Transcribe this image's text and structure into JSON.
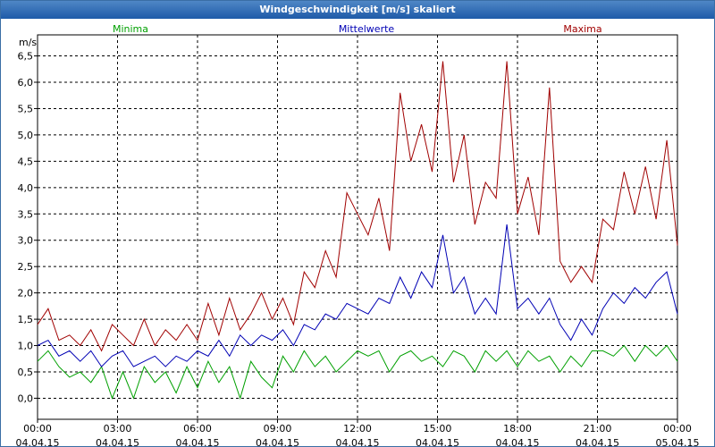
{
  "window": {
    "title": "Windgeschwindigkeit [m/s] skaliert"
  },
  "chart_data": {
    "type": "line",
    "title": "Windgeschwindigkeit [m/s] skaliert",
    "ylabel": "m/s",
    "ylim": [
      -0.4,
      6.9
    ],
    "xlim": [
      "04.04.15 00:00",
      "05.04.15 00:00"
    ],
    "grid": true,
    "y_ticks": [
      "0,0",
      "0,5",
      "1,0",
      "1,5",
      "2,0",
      "2,5",
      "3,0",
      "3,5",
      "4,0",
      "4,5",
      "5,0",
      "5,5",
      "6,0",
      "6,5"
    ],
    "x_ticks": [
      {
        "time": "00:00",
        "date": "04.04.15"
      },
      {
        "time": "03:00",
        "date": "04.04.15"
      },
      {
        "time": "06:00",
        "date": "04.04.15"
      },
      {
        "time": "09:00",
        "date": "04.04.15"
      },
      {
        "time": "12:00",
        "date": "04.04.15"
      },
      {
        "time": "15:00",
        "date": "04.04.15"
      },
      {
        "time": "18:00",
        "date": "04.04.15"
      },
      {
        "time": "21:00",
        "date": "04.04.15"
      },
      {
        "time": "00:00",
        "date": "05.04.15"
      }
    ],
    "series": [
      {
        "name": "Minima",
        "color": "#00a000",
        "points": [
          [
            "04.04.15 00:00",
            0.7
          ],
          [
            "04.04.15 00:24",
            0.9
          ],
          [
            "04.04.15 00:48",
            0.6
          ],
          [
            "04.04.15 01:12",
            0.4
          ],
          [
            "04.04.15 01:36",
            0.5
          ],
          [
            "04.04.15 02:00",
            0.3
          ],
          [
            "04.04.15 02:24",
            0.6
          ],
          [
            "04.04.15 02:48",
            0.0
          ],
          [
            "04.04.15 03:12",
            0.5
          ],
          [
            "04.04.15 03:36",
            0.0
          ],
          [
            "04.04.15 04:00",
            0.6
          ],
          [
            "04.04.15 04:24",
            0.3
          ],
          [
            "04.04.15 04:48",
            0.5
          ],
          [
            "04.04.15 05:12",
            0.1
          ],
          [
            "04.04.15 05:36",
            0.6
          ],
          [
            "04.04.15 06:00",
            0.2
          ],
          [
            "04.04.15 06:24",
            0.7
          ],
          [
            "04.04.15 06:48",
            0.3
          ],
          [
            "04.04.15 07:12",
            0.6
          ],
          [
            "04.04.15 07:36",
            0.0
          ],
          [
            "04.04.15 08:00",
            0.7
          ],
          [
            "04.04.15 08:24",
            0.4
          ],
          [
            "04.04.15 08:48",
            0.2
          ],
          [
            "04.04.15 09:12",
            0.8
          ],
          [
            "04.04.15 09:36",
            0.5
          ],
          [
            "04.04.15 10:00",
            0.9
          ],
          [
            "04.04.15 10:24",
            0.6
          ],
          [
            "04.04.15 10:48",
            0.8
          ],
          [
            "04.04.15 11:12",
            0.5
          ],
          [
            "04.04.15 11:36",
            0.7
          ],
          [
            "04.04.15 12:00",
            0.9
          ],
          [
            "04.04.15 12:24",
            0.8
          ],
          [
            "04.04.15 12:48",
            0.9
          ],
          [
            "04.04.15 13:12",
            0.5
          ],
          [
            "04.04.15 13:36",
            0.8
          ],
          [
            "04.04.15 14:00",
            0.9
          ],
          [
            "04.04.15 14:24",
            0.7
          ],
          [
            "04.04.15 14:48",
            0.8
          ],
          [
            "04.04.15 15:12",
            0.6
          ],
          [
            "04.04.15 15:36",
            0.9
          ],
          [
            "04.04.15 16:00",
            0.8
          ],
          [
            "04.04.15 16:24",
            0.5
          ],
          [
            "04.04.15 16:48",
            0.9
          ],
          [
            "04.04.15 17:12",
            0.7
          ],
          [
            "04.04.15 17:36",
            0.9
          ],
          [
            "04.04.15 18:00",
            0.6
          ],
          [
            "04.04.15 18:24",
            0.9
          ],
          [
            "04.04.15 18:48",
            0.7
          ],
          [
            "04.04.15 19:12",
            0.8
          ],
          [
            "04.04.15 19:36",
            0.5
          ],
          [
            "04.04.15 20:00",
            0.8
          ],
          [
            "04.04.15 20:24",
            0.6
          ],
          [
            "04.04.15 20:48",
            0.9
          ],
          [
            "04.04.15 21:12",
            0.9
          ],
          [
            "04.04.15 21:36",
            0.8
          ],
          [
            "04.04.15 22:00",
            1.0
          ],
          [
            "04.04.15 22:24",
            0.7
          ],
          [
            "04.04.15 22:48",
            1.0
          ],
          [
            "04.04.15 23:12",
            0.8
          ],
          [
            "04.04.15 23:36",
            1.0
          ],
          [
            "05.04.15 00:00",
            0.7
          ]
        ]
      },
      {
        "name": "Mittelwerte",
        "color": "#0000b4",
        "points": [
          [
            "04.04.15 00:00",
            1.0
          ],
          [
            "04.04.15 00:24",
            1.1
          ],
          [
            "04.04.15 00:48",
            0.8
          ],
          [
            "04.04.15 01:12",
            0.9
          ],
          [
            "04.04.15 01:36",
            0.7
          ],
          [
            "04.04.15 02:00",
            0.9
          ],
          [
            "04.04.15 02:24",
            0.6
          ],
          [
            "04.04.15 02:48",
            0.8
          ],
          [
            "04.04.15 03:12",
            0.9
          ],
          [
            "04.04.15 03:36",
            0.6
          ],
          [
            "04.04.15 04:00",
            0.7
          ],
          [
            "04.04.15 04:24",
            0.8
          ],
          [
            "04.04.15 04:48",
            0.6
          ],
          [
            "04.04.15 05:12",
            0.8
          ],
          [
            "04.04.15 05:36",
            0.7
          ],
          [
            "04.04.15 06:00",
            0.9
          ],
          [
            "04.04.15 06:24",
            0.8
          ],
          [
            "04.04.15 06:48",
            1.1
          ],
          [
            "04.04.15 07:12",
            0.8
          ],
          [
            "04.04.15 07:36",
            1.2
          ],
          [
            "04.04.15 08:00",
            1.0
          ],
          [
            "04.04.15 08:24",
            1.2
          ],
          [
            "04.04.15 08:48",
            1.1
          ],
          [
            "04.04.15 09:12",
            1.3
          ],
          [
            "04.04.15 09:36",
            1.0
          ],
          [
            "04.04.15 10:00",
            1.4
          ],
          [
            "04.04.15 10:24",
            1.3
          ],
          [
            "04.04.15 10:48",
            1.6
          ],
          [
            "04.04.15 11:12",
            1.5
          ],
          [
            "04.04.15 11:36",
            1.8
          ],
          [
            "04.04.15 12:00",
            1.7
          ],
          [
            "04.04.15 12:24",
            1.6
          ],
          [
            "04.04.15 12:48",
            1.9
          ],
          [
            "04.04.15 13:12",
            1.8
          ],
          [
            "04.04.15 13:36",
            2.3
          ],
          [
            "04.04.15 14:00",
            1.9
          ],
          [
            "04.04.15 14:24",
            2.4
          ],
          [
            "04.04.15 14:48",
            2.1
          ],
          [
            "04.04.15 15:12",
            3.1
          ],
          [
            "04.04.15 15:36",
            2.0
          ],
          [
            "04.04.15 16:00",
            2.3
          ],
          [
            "04.04.15 16:24",
            1.6
          ],
          [
            "04.04.15 16:48",
            1.9
          ],
          [
            "04.04.15 17:12",
            1.6
          ],
          [
            "04.04.15 17:36",
            3.3
          ],
          [
            "04.04.15 18:00",
            1.7
          ],
          [
            "04.04.15 18:24",
            1.9
          ],
          [
            "04.04.15 18:48",
            1.6
          ],
          [
            "04.04.15 19:12",
            1.9
          ],
          [
            "04.04.15 19:36",
            1.4
          ],
          [
            "04.04.15 20:00",
            1.1
          ],
          [
            "04.04.15 20:24",
            1.5
          ],
          [
            "04.04.15 20:48",
            1.2
          ],
          [
            "04.04.15 21:12",
            1.7
          ],
          [
            "04.04.15 21:36",
            2.0
          ],
          [
            "04.04.15 22:00",
            1.8
          ],
          [
            "04.04.15 22:24",
            2.1
          ],
          [
            "04.04.15 22:48",
            1.9
          ],
          [
            "04.04.15 23:12",
            2.2
          ],
          [
            "04.04.15 23:36",
            2.4
          ],
          [
            "05.04.15 00:00",
            1.6
          ]
        ]
      },
      {
        "name": "Maxima",
        "color": "#a00000",
        "points": [
          [
            "04.04.15 00:00",
            1.4
          ],
          [
            "04.04.15 00:24",
            1.7
          ],
          [
            "04.04.15 00:48",
            1.1
          ],
          [
            "04.04.15 01:12",
            1.2
          ],
          [
            "04.04.15 01:36",
            1.0
          ],
          [
            "04.04.15 02:00",
            1.3
          ],
          [
            "04.04.15 02:24",
            0.9
          ],
          [
            "04.04.15 02:48",
            1.4
          ],
          [
            "04.04.15 03:12",
            1.2
          ],
          [
            "04.04.15 03:36",
            1.0
          ],
          [
            "04.04.15 04:00",
            1.5
          ],
          [
            "04.04.15 04:24",
            1.0
          ],
          [
            "04.04.15 04:48",
            1.3
          ],
          [
            "04.04.15 05:12",
            1.1
          ],
          [
            "04.04.15 05:36",
            1.4
          ],
          [
            "04.04.15 06:00",
            1.1
          ],
          [
            "04.04.15 06:24",
            1.8
          ],
          [
            "04.04.15 06:48",
            1.2
          ],
          [
            "04.04.15 07:12",
            1.9
          ],
          [
            "04.04.15 07:36",
            1.3
          ],
          [
            "04.04.15 08:00",
            1.6
          ],
          [
            "04.04.15 08:24",
            2.0
          ],
          [
            "04.04.15 08:48",
            1.5
          ],
          [
            "04.04.15 09:12",
            1.9
          ],
          [
            "04.04.15 09:36",
            1.4
          ],
          [
            "04.04.15 10:00",
            2.4
          ],
          [
            "04.04.15 10:24",
            2.1
          ],
          [
            "04.04.15 10:48",
            2.8
          ],
          [
            "04.04.15 11:12",
            2.3
          ],
          [
            "04.04.15 11:36",
            3.9
          ],
          [
            "04.04.15 12:00",
            3.5
          ],
          [
            "04.04.15 12:24",
            3.1
          ],
          [
            "04.04.15 12:48",
            3.8
          ],
          [
            "04.04.15 13:12",
            2.8
          ],
          [
            "04.04.15 13:36",
            5.8
          ],
          [
            "04.04.15 14:00",
            4.5
          ],
          [
            "04.04.15 14:24",
            5.2
          ],
          [
            "04.04.15 14:48",
            4.3
          ],
          [
            "04.04.15 15:12",
            6.4
          ],
          [
            "04.04.15 15:36",
            4.1
          ],
          [
            "04.04.15 16:00",
            5.0
          ],
          [
            "04.04.15 16:24",
            3.3
          ],
          [
            "04.04.15 16:48",
            4.1
          ],
          [
            "04.04.15 17:12",
            3.8
          ],
          [
            "04.04.15 17:36",
            6.4
          ],
          [
            "04.04.15 18:00",
            3.5
          ],
          [
            "04.04.15 18:24",
            4.2
          ],
          [
            "04.04.15 18:48",
            3.1
          ],
          [
            "04.04.15 19:12",
            5.9
          ],
          [
            "04.04.15 19:36",
            2.6
          ],
          [
            "04.04.15 20:00",
            2.2
          ],
          [
            "04.04.15 20:24",
            2.5
          ],
          [
            "04.04.15 20:48",
            2.2
          ],
          [
            "04.04.15 21:12",
            3.4
          ],
          [
            "04.04.15 21:36",
            3.2
          ],
          [
            "04.04.15 22:00",
            4.3
          ],
          [
            "04.04.15 22:24",
            3.5
          ],
          [
            "04.04.15 22:48",
            4.4
          ],
          [
            "04.04.15 23:12",
            3.4
          ],
          [
            "04.04.15 23:36",
            4.9
          ],
          [
            "05.04.15 00:00",
            2.9
          ]
        ]
      }
    ],
    "legend": [
      "Minima",
      "Mittelwerte",
      "Maxima"
    ]
  }
}
